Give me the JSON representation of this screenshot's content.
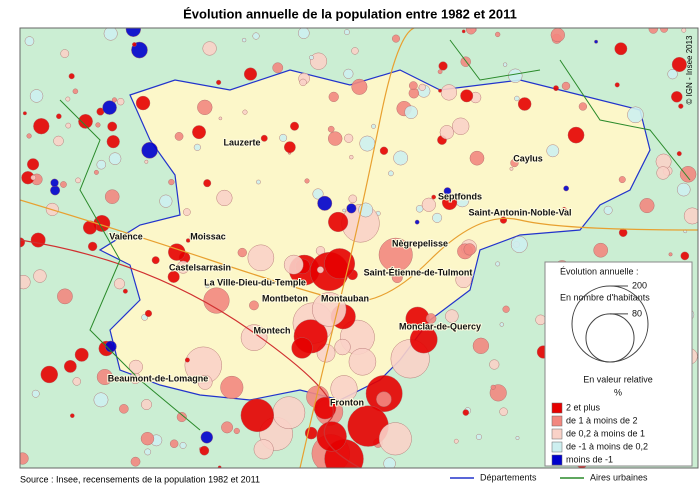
{
  "title": "Évolution annuelle de la population entre 1982 et 2011",
  "places": [
    {
      "label": "Lauzerte"
    },
    {
      "label": "Caylus"
    },
    {
      "label": "Septfonds"
    },
    {
      "label": "Saint-Antonin-Noble-Val"
    },
    {
      "label": "Valence"
    },
    {
      "label": "Moissac"
    },
    {
      "label": "Nègrepelisse"
    },
    {
      "label": "Castelsarrasin"
    },
    {
      "label": "Saint-Étienne-de-Tulmont"
    },
    {
      "label": "La Ville-Dieu-du-Temple"
    },
    {
      "label": "Montbeton"
    },
    {
      "label": "Montauban"
    },
    {
      "label": "Monclar-de-Quercy"
    },
    {
      "label": "Montech"
    },
    {
      "label": "Beaumont-de-Lomagne"
    },
    {
      "label": "Fronton"
    }
  ],
  "legend": {
    "title": "Évolution annuelle :",
    "size_heading": "En nombre d'habitants",
    "sizes": [
      200,
      80
    ],
    "relative_heading": "En valeur relative",
    "unit": "%",
    "classes": [
      {
        "label": "2 et plus",
        "color": "#e60000"
      },
      {
        "label": "de 1 à moins de 2",
        "color": "#f2877f"
      },
      {
        "label": "de 0,2 à moins de 1",
        "color": "#f9d2c8"
      },
      {
        "label": "de -1 à moins de 0,2",
        "color": "#cdeff0"
      },
      {
        "label": "moins de -1",
        "color": "#0000cc"
      }
    ]
  },
  "lines": [
    {
      "label": "Départements",
      "color": "#2233cc"
    },
    {
      "label": "Aires urbaines",
      "color": "#2a8a2a"
    }
  ],
  "source": "Source : Insee, recensements de la population 1982 et 2011",
  "credit": "© IGN - Insee 2013"
}
